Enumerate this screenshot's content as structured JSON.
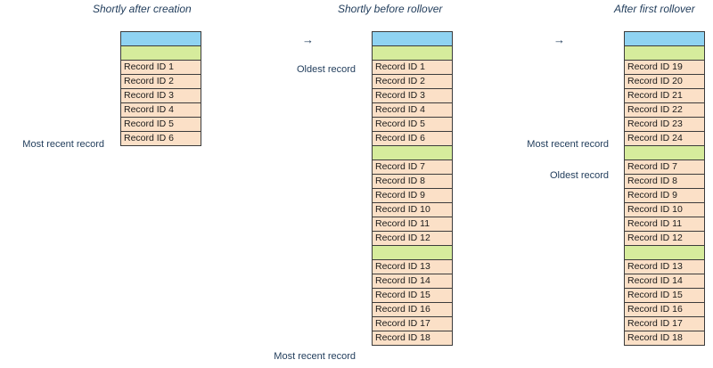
{
  "titles": {
    "col1": "Shortly after creation",
    "col2": "Shortly before rollover",
    "col3": "After first rollover"
  },
  "arrows": {
    "symbol": "→"
  },
  "labels": {
    "oldest": "Oldest record",
    "most_recent": "Most recent record"
  },
  "colors": {
    "header_cell": "#8fd3f2",
    "separator_cell": "#d6ec9c",
    "record_cell": "#fbe0c7",
    "text": "#1f3b5a"
  },
  "columns": [
    {
      "cells": [
        {
          "type": "header",
          "text": ""
        },
        {
          "type": "sep",
          "text": ""
        },
        {
          "type": "record",
          "text": "Record ID 1"
        },
        {
          "type": "record",
          "text": "Record ID 2"
        },
        {
          "type": "record",
          "text": "Record ID 3"
        },
        {
          "type": "record",
          "text": "Record ID 4"
        },
        {
          "type": "record",
          "text": "Record ID 5"
        },
        {
          "type": "record",
          "text": "Record ID 6"
        }
      ]
    },
    {
      "cells": [
        {
          "type": "header",
          "text": ""
        },
        {
          "type": "sep",
          "text": ""
        },
        {
          "type": "record",
          "text": "Record ID 1"
        },
        {
          "type": "record",
          "text": "Record ID 2"
        },
        {
          "type": "record",
          "text": "Record ID 3"
        },
        {
          "type": "record",
          "text": "Record ID 4"
        },
        {
          "type": "record",
          "text": "Record ID 5"
        },
        {
          "type": "record",
          "text": "Record ID 6"
        },
        {
          "type": "sep",
          "text": ""
        },
        {
          "type": "record",
          "text": "Record ID 7"
        },
        {
          "type": "record",
          "text": "Record ID 8"
        },
        {
          "type": "record",
          "text": "Record ID 9"
        },
        {
          "type": "record",
          "text": "Record ID 10"
        },
        {
          "type": "record",
          "text": "Record ID 11"
        },
        {
          "type": "record",
          "text": "Record ID 12"
        },
        {
          "type": "sep",
          "text": ""
        },
        {
          "type": "record",
          "text": "Record ID 13"
        },
        {
          "type": "record",
          "text": "Record ID 14"
        },
        {
          "type": "record",
          "text": "Record ID 15"
        },
        {
          "type": "record",
          "text": "Record ID 16"
        },
        {
          "type": "record",
          "text": "Record ID 17"
        },
        {
          "type": "record",
          "text": "Record ID 18"
        }
      ]
    },
    {
      "cells": [
        {
          "type": "header",
          "text": ""
        },
        {
          "type": "sep",
          "text": ""
        },
        {
          "type": "record",
          "text": "Record ID 19"
        },
        {
          "type": "record",
          "text": "Record ID 20"
        },
        {
          "type": "record",
          "text": "Record ID 21"
        },
        {
          "type": "record",
          "text": "Record ID 22"
        },
        {
          "type": "record",
          "text": "Record ID 23"
        },
        {
          "type": "record",
          "text": "Record ID 24"
        },
        {
          "type": "sep",
          "text": ""
        },
        {
          "type": "record",
          "text": "Record ID 7"
        },
        {
          "type": "record",
          "text": "Record ID 8"
        },
        {
          "type": "record",
          "text": "Record ID 9"
        },
        {
          "type": "record",
          "text": "Record ID 10"
        },
        {
          "type": "record",
          "text": "Record ID 11"
        },
        {
          "type": "record",
          "text": "Record ID 12"
        },
        {
          "type": "sep",
          "text": ""
        },
        {
          "type": "record",
          "text": "Record ID 13"
        },
        {
          "type": "record",
          "text": "Record ID 14"
        },
        {
          "type": "record",
          "text": "Record ID 15"
        },
        {
          "type": "record",
          "text": "Record ID 16"
        },
        {
          "type": "record",
          "text": "Record ID 17"
        },
        {
          "type": "record",
          "text": "Record ID 18"
        }
      ]
    }
  ]
}
